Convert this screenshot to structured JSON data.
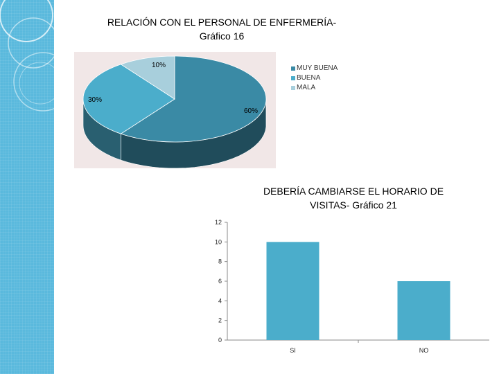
{
  "chart_data": [
    {
      "type": "pie",
      "title": "RELACIÓN CON EL PERSONAL DE ENFERMERÍA- Gráfico 16",
      "title_line1": "RELACIÓN CON EL PERSONAL DE ENFERMERÍA-",
      "title_line2": "Gráfico 16",
      "categories": [
        "MUY BUENA",
        "BUENA",
        "MALA"
      ],
      "values": [
        60,
        30,
        10
      ],
      "labels": [
        "60%",
        "30%",
        "10%"
      ],
      "colors": [
        "#3a8aa5",
        "#4badcb",
        "#a8cfdc"
      ],
      "legend_position": "right"
    },
    {
      "type": "bar",
      "title": "DEBERÍA CAMBIARSE EL HORARIO DE VISITAS- Gráfico 21",
      "title_line1": "DEBERÍA CAMBIARSE EL HORARIO DE",
      "title_line2": "VISITAS- Gráfico 21",
      "categories": [
        "SI",
        "NO"
      ],
      "values": [
        10,
        6
      ],
      "ylim": [
        0,
        12
      ],
      "yticks": [
        0,
        2,
        4,
        6,
        8,
        10,
        12
      ],
      "color": "#4badcb",
      "grid": false
    }
  ]
}
